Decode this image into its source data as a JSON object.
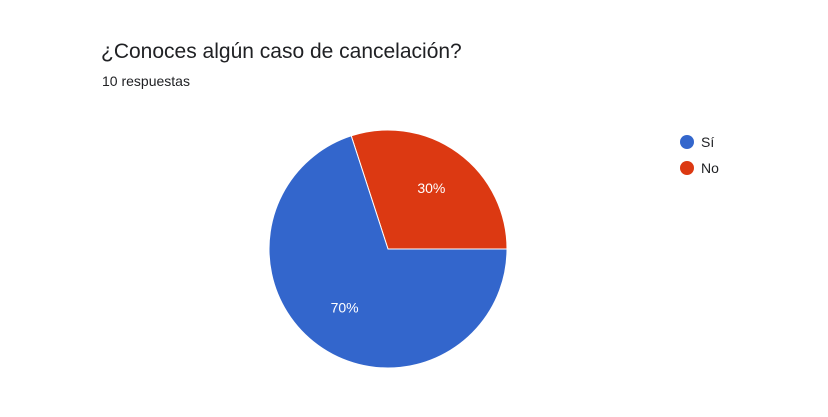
{
  "header": {
    "question": "¿Conoces algún caso de cancelación?",
    "responses": "10 respuestas"
  },
  "chart_data": {
    "type": "pie",
    "title": "¿Conoces algún caso de cancelación?",
    "subtitle": "10 respuestas",
    "categories": [
      "Sí",
      "No"
    ],
    "values": [
      70,
      30
    ],
    "labels": [
      "70%",
      "30%"
    ],
    "colors": [
      "#3366cc",
      "#dc3912"
    ],
    "legend": "right"
  }
}
